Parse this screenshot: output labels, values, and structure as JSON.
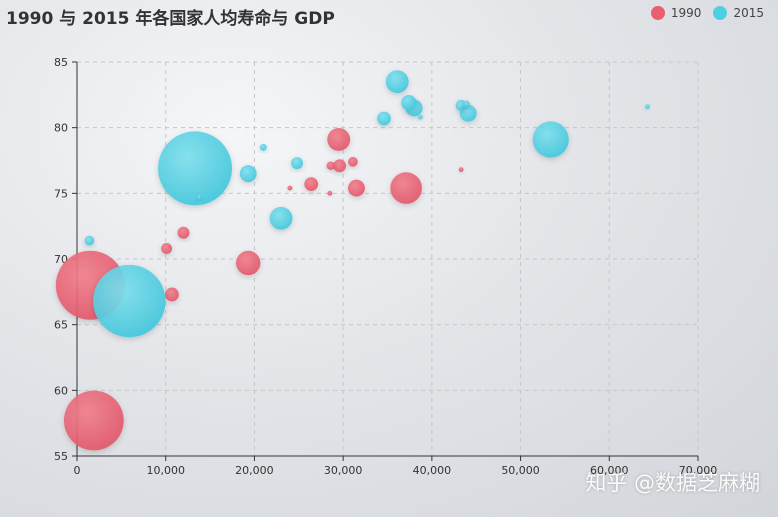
{
  "chart_data": {
    "type": "scatter",
    "title": "1990 与 2015 年各国家人均寿命与 GDP",
    "xlim": [
      0,
      70000
    ],
    "ylim": [
      55,
      85
    ],
    "x_ticks": [
      "0",
      "10,000",
      "20,000",
      "30,000",
      "40,000",
      "50,000",
      "60,000",
      "70,000"
    ],
    "y_ticks": [
      "55",
      "60",
      "65",
      "70",
      "75",
      "80",
      "85"
    ],
    "grid": "dashed",
    "legend_position": "top-right",
    "series": [
      {
        "name": "1990",
        "color": "#e8606f",
        "points": [
          {
            "x": 28600,
            "y": 77.1,
            "pop": 3
          },
          {
            "x": 1500,
            "y": 68.0,
            "pop": 200
          },
          {
            "x": 1900,
            "y": 57.7,
            "pop": 150
          },
          {
            "x": 12000,
            "y": 72.0,
            "pop": 6
          },
          {
            "x": 10100,
            "y": 70.8,
            "pop": 5
          },
          {
            "x": 10700,
            "y": 67.3,
            "pop": 8
          },
          {
            "x": 19300,
            "y": 69.7,
            "pop": 25
          },
          {
            "x": 24000,
            "y": 75.4,
            "pop": 1
          },
          {
            "x": 26400,
            "y": 75.7,
            "pop": 8
          },
          {
            "x": 28500,
            "y": 75.0,
            "pop": 1
          },
          {
            "x": 29500,
            "y": 79.1,
            "pop": 22
          },
          {
            "x": 29600,
            "y": 77.1,
            "pop": 7
          },
          {
            "x": 31100,
            "y": 77.4,
            "pop": 4
          },
          {
            "x": 31500,
            "y": 75.4,
            "pop": 12
          },
          {
            "x": 37100,
            "y": 75.4,
            "pop": 42
          },
          {
            "x": 43300,
            "y": 76.8,
            "pop": 1
          }
        ]
      },
      {
        "name": "2015",
        "color": "#4fcfe2",
        "points": [
          {
            "x": 1400,
            "y": 71.4,
            "pop": 4
          },
          {
            "x": 5900,
            "y": 66.8,
            "pop": 220
          },
          {
            "x": 13300,
            "y": 76.9,
            "pop": 230
          },
          {
            "x": 13800,
            "y": 74.7,
            "pop": 1
          },
          {
            "x": 19300,
            "y": 76.5,
            "pop": 12
          },
          {
            "x": 21000,
            "y": 78.5,
            "pop": 2
          },
          {
            "x": 23000,
            "y": 73.1,
            "pop": 22
          },
          {
            "x": 24800,
            "y": 77.3,
            "pop": 6
          },
          {
            "x": 34600,
            "y": 80.7,
            "pop": 8
          },
          {
            "x": 36100,
            "y": 83.5,
            "pop": 22
          },
          {
            "x": 37400,
            "y": 81.9,
            "pop": 10
          },
          {
            "x": 38000,
            "y": 81.5,
            "pop": 12
          },
          {
            "x": 38700,
            "y": 80.8,
            "pop": 1
          },
          {
            "x": 43300,
            "y": 81.7,
            "pop": 5
          },
          {
            "x": 43900,
            "y": 81.8,
            "pop": 2
          },
          {
            "x": 44100,
            "y": 81.1,
            "pop": 12
          },
          {
            "x": 53400,
            "y": 79.1,
            "pop": 55
          },
          {
            "x": 64300,
            "y": 81.6,
            "pop": 1
          }
        ]
      }
    ]
  },
  "watermark": "知乎 @数据芝麻糊"
}
